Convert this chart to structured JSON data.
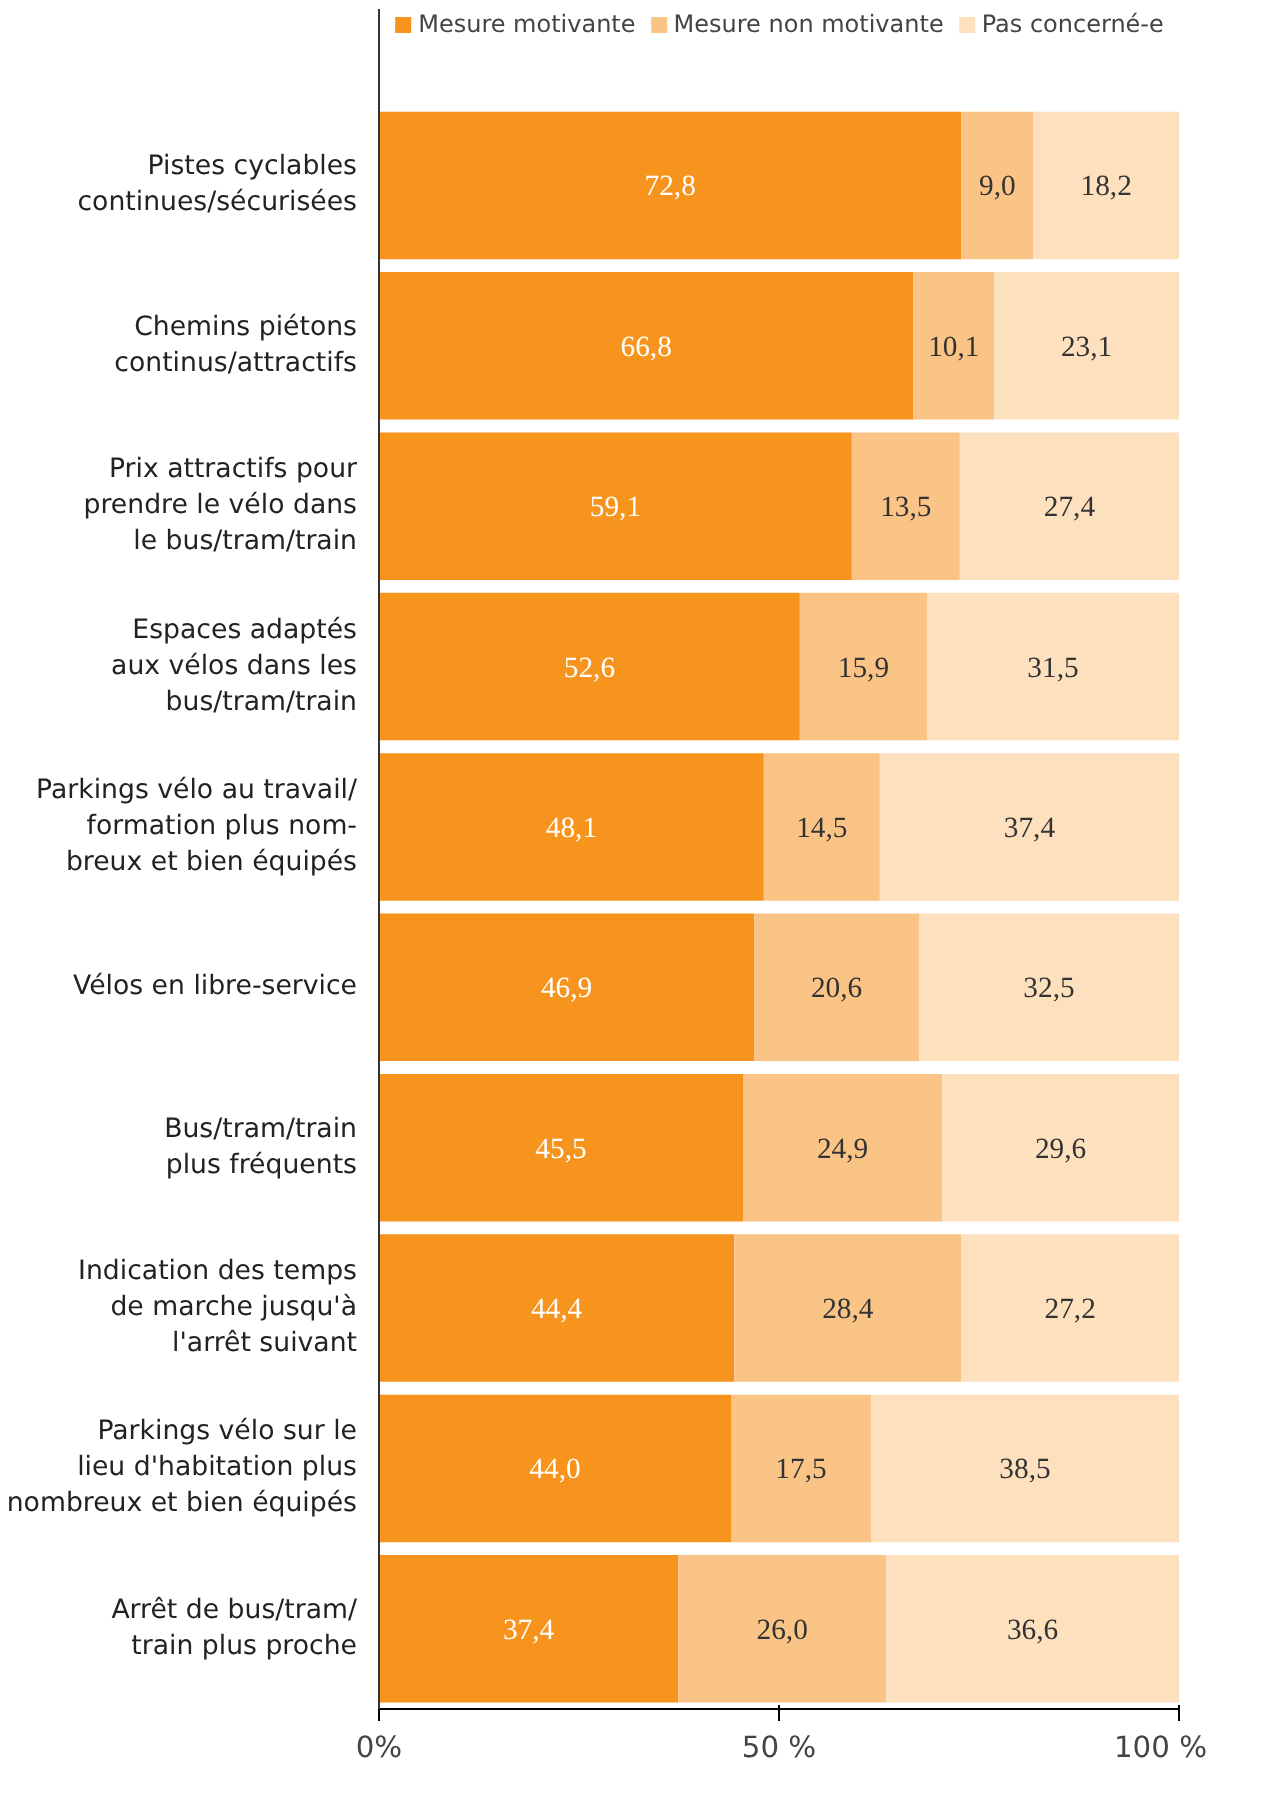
{
  "chart_data": {
    "type": "bar",
    "orientation": "horizontal",
    "stacked": true,
    "categories": [
      "Pistes cyclables\ncontinues/sécurisées",
      "Chemins piétons\ncontinus/attractifs",
      "Prix attractifs pour\nprendre le vélo dans\nle bus/tram/train",
      "Espaces adaptés\naux vélos dans les\nbus/tram/train",
      "Parkings vélo au travail/\nformation plus nom-\nbreux et bien équipés",
      "Vélos en libre-service",
      "Bus/tram/train\nplus fréquents",
      "Indication des temps\nde marche jusqu'à\nl'arrêt suivant",
      "Parkings vélo sur le\nlieu d'habitation plus\nnombreux et bien équipés",
      "Arrêt de bus/tram/\ntrain plus proche"
    ],
    "series": [
      {
        "name": "Mesure motivante",
        "color": "#f7941d",
        "values": [
          72.8,
          66.8,
          59.1,
          52.6,
          48.1,
          46.9,
          45.5,
          44.4,
          44.0,
          37.4
        ],
        "value_labels": [
          "72,8",
          "66,8",
          "59,1",
          "52,6",
          "48,1",
          "46,9",
          "45,5",
          "44,4",
          "44,0",
          "37,4"
        ]
      },
      {
        "name": "Mesure non motivante",
        "color": "#fbc487",
        "values": [
          9.0,
          10.1,
          13.5,
          15.9,
          14.5,
          20.6,
          24.9,
          28.4,
          17.5,
          26.0
        ],
        "value_labels": [
          "9,0",
          "10,1",
          "13,5",
          "15,9",
          "14,5",
          "20,6",
          "24,9",
          "28,4",
          "17,5",
          "26,0"
        ]
      },
      {
        "name": "Pas concerné-e",
        "color": "#fde0bd",
        "values": [
          18.2,
          23.1,
          27.4,
          31.5,
          37.4,
          32.5,
          29.6,
          27.2,
          38.5,
          36.6
        ],
        "value_labels": [
          "18,2",
          "23,1",
          "27,4",
          "31,5",
          "37,4",
          "32,5",
          "29,6",
          "27,2",
          "38,5",
          "36,6"
        ]
      }
    ],
    "xlim": [
      0,
      100
    ],
    "xticks": [
      {
        "value": 0,
        "label": "0%"
      },
      {
        "value": 50,
        "label": "50 %"
      },
      {
        "value": 100,
        "label": "100 %"
      }
    ],
    "legend": "top",
    "grid": false
  }
}
